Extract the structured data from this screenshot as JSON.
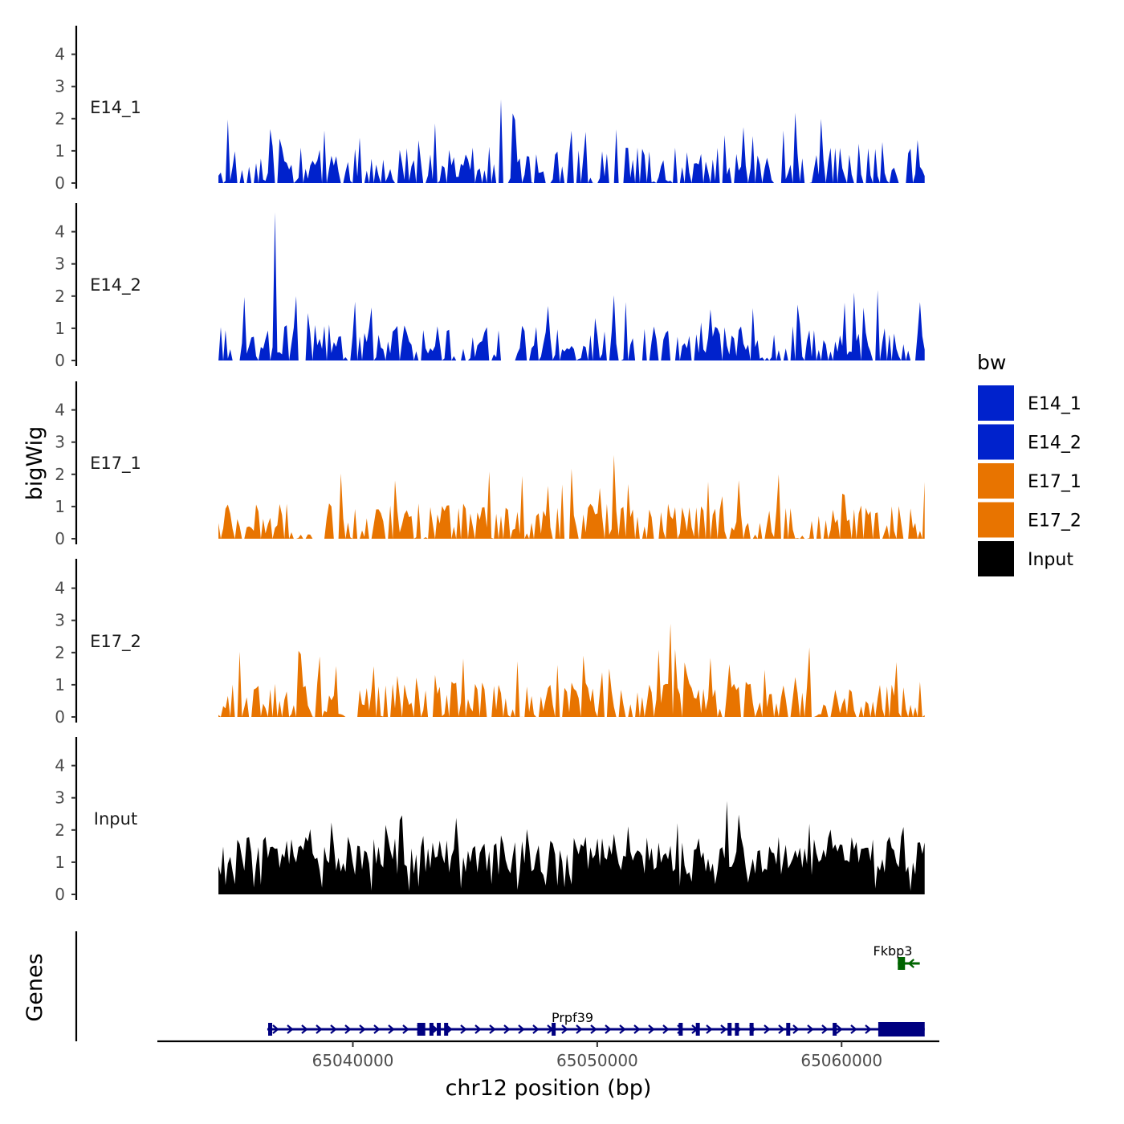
{
  "chart_data": {
    "type": "area",
    "xlabel": "chr12 position (bp)",
    "ylabel": "bigWig",
    "xlim": [
      65032000,
      65064000
    ],
    "x_range_data": [
      65034500,
      65063400
    ],
    "x_ticks": [
      65040000,
      65050000,
      65060000
    ],
    "x_tick_labels": [
      "65040000",
      "65050000",
      "65060000"
    ],
    "ylim": [
      0,
      5
    ],
    "y_ticks": [
      0,
      1,
      2,
      3,
      4
    ],
    "y_tick_labels": [
      "0",
      "1",
      "2",
      "3",
      "4"
    ],
    "legend": {
      "title": "bw",
      "position": "right",
      "entries": [
        {
          "label": "E14_1",
          "color": "#0022CC"
        },
        {
          "label": "E14_2",
          "color": "#0022CC"
        },
        {
          "label": "E17_1",
          "color": "#E87400"
        },
        {
          "label": "E17_2",
          "color": "#E87400"
        },
        {
          "label": "Input",
          "color": "#000000"
        }
      ]
    },
    "series": [
      {
        "name": "E14_1",
        "color": "#0022CC",
        "peak_max": 2.6
      },
      {
        "name": "E14_2",
        "color": "#0022CC",
        "peak_max": 4.6
      },
      {
        "name": "E17_1",
        "color": "#E87400",
        "peak_max": 2.6
      },
      {
        "name": "E17_2",
        "color": "#E87400",
        "peak_max": 2.9
      },
      {
        "name": "Input",
        "color": "#000000",
        "peak_max": 2.9
      }
    ],
    "genes_track": {
      "label": "Genes",
      "genes": [
        {
          "name": "Prpf39",
          "strand": "+",
          "start": 65036500,
          "end": 65063400,
          "color": "#000080"
        },
        {
          "name": "Fkbp3",
          "strand": "-",
          "start": 65062300,
          "end": 65063200,
          "color": "#006400"
        }
      ]
    }
  }
}
